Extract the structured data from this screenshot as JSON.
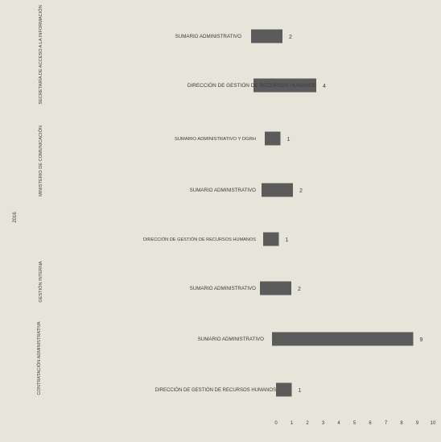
{
  "chart_data": {
    "type": "bar",
    "orientation": "horizontal",
    "title": "",
    "xlabel": "",
    "ylabel": "",
    "xlim": [
      0,
      10
    ],
    "x_ticks": [
      0,
      1,
      2,
      3,
      4,
      5,
      6,
      7,
      8,
      9,
      10
    ],
    "grid": false,
    "bar_color": "#5b5b5b",
    "year_label": "2016",
    "groups": [
      {
        "name": "SECRETARÍA DE ACCESO A LA INFORMACIÓN",
        "rows": [
          0,
          1
        ]
      },
      {
        "name": "MINISTERIO DE COMUNICACIÓN",
        "rows": [
          2,
          3,
          4
        ]
      },
      {
        "name": "GESTIÓN INTERNA",
        "rows": [
          5
        ]
      },
      {
        "name": "CONTRATACIÓN ADMINISTRATIVA",
        "rows": [
          6,
          7
        ]
      }
    ],
    "categories": [
      "SUMARIO ADMINISTRATIVO",
      "DIRECCIÓN DE GESTIÓN DE RECURSOS HUMANOS",
      "SUMARIO ADMINISTRATIVO Y DGRH",
      "SUMARIO ADMINISTRATIVO",
      "DIRECCIÓN DE GESTIÓN DE RECURSOS HUMANOS",
      "SUMARIO ADMINISTRATIVO",
      "SUMARIO ADMINISTRATIVO",
      "DIRECCIÓN DE GESTIÓN DE RECURSOS HUMANOS"
    ],
    "values": [
      2,
      4,
      1,
      2,
      1,
      2,
      9,
      1
    ]
  }
}
